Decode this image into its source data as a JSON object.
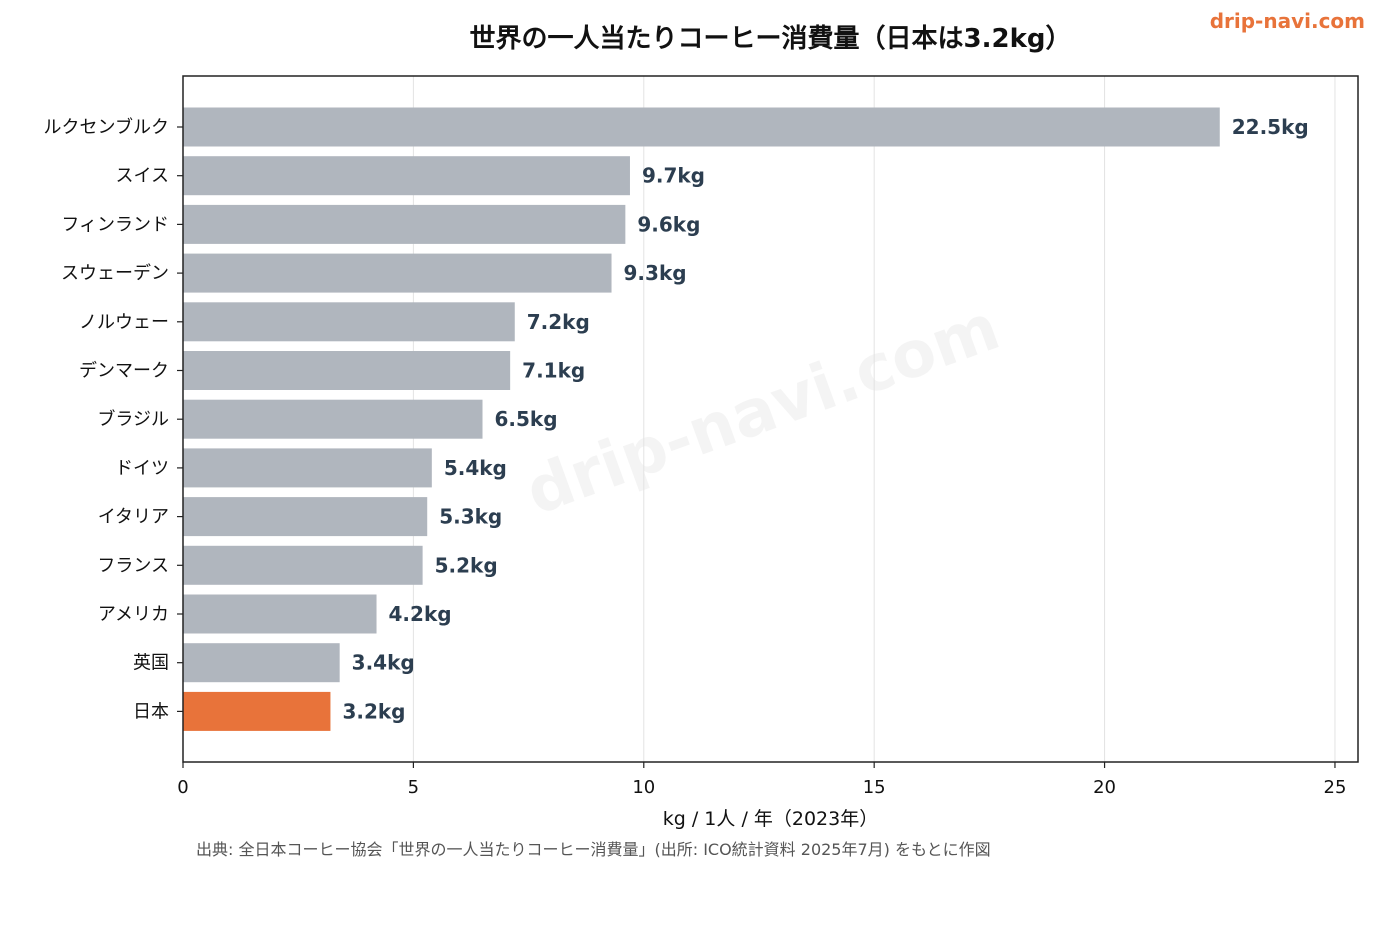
{
  "brand": {
    "text": "drip-navi.com",
    "color": "#e8733a"
  },
  "watermark": "drip-navi.com",
  "source_note": "出典: 全日本コーヒー協会「世界の一人当たりコーヒー消費量」(出所: ICO統計資料 2025年7月) をもとに作図",
  "chart_data": {
    "type": "bar",
    "orientation": "horizontal",
    "title": "世界の一人当たりコーヒー消費量（日本は3.2kg）",
    "xlabel": "kg / 1人 / 年（2023年）",
    "ylabel": "",
    "xlim": [
      0,
      25.5
    ],
    "xticks": [
      0,
      5,
      10,
      15,
      20,
      25
    ],
    "grid": "vertical",
    "categories": [
      "ルクセンブルク",
      "スイス",
      "フィンランド",
      "スウェーデン",
      "ノルウェー",
      "デンマーク",
      "ブラジル",
      "ドイツ",
      "イタリア",
      "フランス",
      "アメリカ",
      "英国",
      "日本"
    ],
    "values": [
      22.5,
      9.7,
      9.6,
      9.3,
      7.2,
      7.1,
      6.5,
      5.4,
      5.3,
      5.2,
      4.2,
      3.4,
      3.2
    ],
    "data_labels": [
      "22.5kg",
      "9.7kg",
      "9.6kg",
      "9.3kg",
      "7.2kg",
      "7.1kg",
      "6.5kg",
      "5.4kg",
      "5.3kg",
      "5.2kg",
      "4.2kg",
      "3.4kg",
      "3.2kg"
    ],
    "bar_color": "#b0b6be",
    "highlight": "日本",
    "highlight_color": "#e8733a",
    "label_color": "#2c3e50"
  }
}
